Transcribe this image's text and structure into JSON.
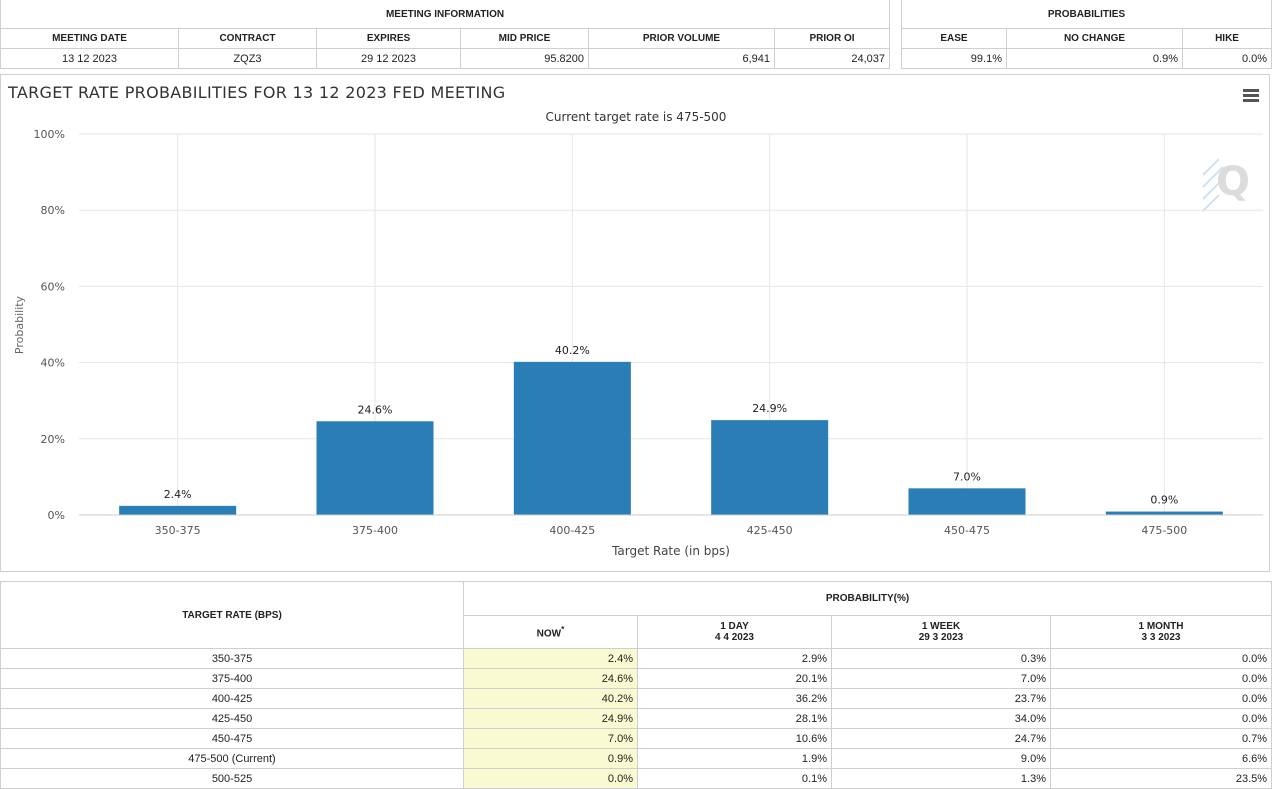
{
  "meeting_info": {
    "group_label": "MEETING INFORMATION",
    "headers": [
      "MEETING DATE",
      "CONTRACT",
      "EXPIRES",
      "MID PRICE",
      "PRIOR VOLUME",
      "PRIOR OI"
    ],
    "values": [
      "13 12 2023",
      "ZQZ3",
      "29 12 2023",
      "95.8200",
      "6,941",
      "24,037"
    ]
  },
  "probabilities": {
    "group_label": "PROBABILITIES",
    "headers": [
      "EASE",
      "NO CHANGE",
      "HIKE"
    ],
    "values": [
      "99.1%",
      "0.9%",
      "0.0%"
    ]
  },
  "chart": {
    "title": "TARGET RATE PROBABILITIES FOR 13 12 2023 FED MEETING",
    "logo_letter": "Q"
  },
  "chart_data": {
    "type": "bar",
    "title": "TARGET RATE PROBABILITIES FOR 13 12 2023 FED MEETING",
    "subtitle": "Current target rate is 475-500",
    "xlabel": "Target Rate (in bps)",
    "ylabel": "Probability",
    "categories": [
      "350-375",
      "375-400",
      "400-425",
      "425-450",
      "450-475",
      "475-500"
    ],
    "values": [
      2.4,
      24.6,
      40.2,
      24.9,
      7.0,
      0.9
    ],
    "data_labels": [
      "2.4%",
      "24.6%",
      "40.2%",
      "24.9%",
      "7.0%",
      "0.9%"
    ],
    "ylim": [
      0,
      100
    ],
    "yticks": [
      0,
      20,
      40,
      60,
      80,
      100
    ],
    "ytick_labels": [
      "0%",
      "20%",
      "40%",
      "60%",
      "80%",
      "100%"
    ],
    "grid": true,
    "bar_color": "#2a7db5"
  },
  "rates_table": {
    "target_rate_header": "TARGET RATE (BPS)",
    "probability_header": "PROBABILITY(%)",
    "now_label": "NOW",
    "now_marker": "*",
    "columns": [
      {
        "label": "1 DAY",
        "date": "4 4 2023"
      },
      {
        "label": "1 WEEK",
        "date": "29 3 2023"
      },
      {
        "label": "1 MONTH",
        "date": "3 3 2023"
      }
    ],
    "rows": [
      {
        "rate": "350-375",
        "now": "2.4%",
        "day": "2.9%",
        "week": "0.3%",
        "month": "0.0%"
      },
      {
        "rate": "375-400",
        "now": "24.6%",
        "day": "20.1%",
        "week": "7.0%",
        "month": "0.0%"
      },
      {
        "rate": "400-425",
        "now": "40.2%",
        "day": "36.2%",
        "week": "23.7%",
        "month": "0.0%"
      },
      {
        "rate": "425-450",
        "now": "24.9%",
        "day": "28.1%",
        "week": "34.0%",
        "month": "0.0%"
      },
      {
        "rate": "450-475",
        "now": "7.0%",
        "day": "10.6%",
        "week": "24.7%",
        "month": "0.7%"
      },
      {
        "rate": "475-500 (Current)",
        "now": "0.9%",
        "day": "1.9%",
        "week": "9.0%",
        "month": "6.6%"
      },
      {
        "rate": "500-525",
        "now": "0.0%",
        "day": "0.1%",
        "week": "1.3%",
        "month": "23.5%"
      }
    ]
  }
}
